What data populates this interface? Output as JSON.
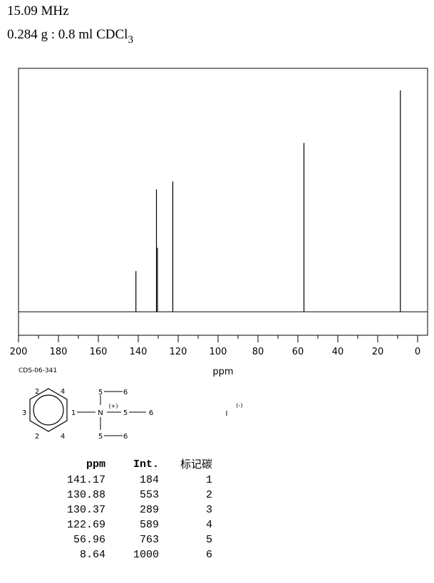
{
  "header": {
    "frequency": "15.09 MHz",
    "sample_main": "0.284 g : 0.8 ml CDCl",
    "sample_sub": "3"
  },
  "code": "CDS-06-341",
  "chart_data": {
    "type": "line",
    "xlabel": "ppm",
    "xlim": [
      200,
      0
    ],
    "x_ticks": [
      200,
      180,
      160,
      140,
      120,
      100,
      80,
      60,
      40,
      20,
      0
    ],
    "peaks": [
      {
        "ppm": 141.17,
        "intensity": 184
      },
      {
        "ppm": 130.88,
        "intensity": 553
      },
      {
        "ppm": 130.37,
        "intensity": 289
      },
      {
        "ppm": 122.69,
        "intensity": 589
      },
      {
        "ppm": 56.96,
        "intensity": 763
      },
      {
        "ppm": 8.64,
        "intensity": 1000
      }
    ]
  },
  "structure": {
    "ring_labels": [
      "2",
      "4",
      "3",
      "1",
      "2",
      "4"
    ],
    "n_label": "N",
    "charge_plus": "(+)",
    "chain_labels": [
      "5",
      "6",
      "5",
      "6",
      "5",
      "6"
    ],
    "anion": "I",
    "anion_charge": "(-)"
  },
  "table": {
    "headers": [
      "ppm",
      "Int.",
      "标记碳"
    ],
    "rows": [
      [
        "141.17",
        "184",
        "1"
      ],
      [
        "130.88",
        "553",
        "2"
      ],
      [
        "130.37",
        "289",
        "3"
      ],
      [
        "122.69",
        "589",
        "4"
      ],
      [
        "56.96",
        "763",
        "5"
      ],
      [
        "8.64",
        "1000",
        "6"
      ]
    ]
  }
}
